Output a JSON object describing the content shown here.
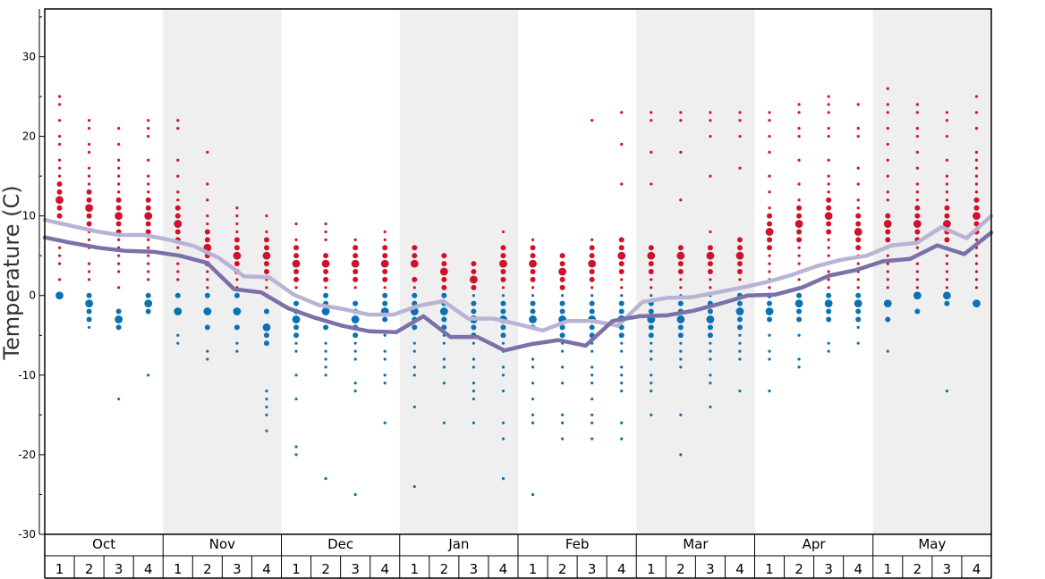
{
  "chart_data": {
    "type": "scatter",
    "ylabel": "Temperature (C)",
    "ylim": [
      -30,
      36
    ],
    "yticks": [
      30,
      20,
      10,
      0,
      -10,
      -20,
      -30
    ],
    "y_tick_labels": [
      "30",
      "20",
      "10",
      "0",
      "-10",
      "-20",
      "-30"
    ],
    "months": [
      "Oct",
      "Nov",
      "Dec",
      "Jan",
      "Feb",
      "Mar",
      "Apr",
      "May"
    ],
    "weeks": [
      "1",
      "2",
      "3",
      "4"
    ],
    "colors": {
      "warm_points": "#d0112b",
      "cold_points": "#0872b4",
      "high_line": "#b9b4d6",
      "low_line": "#7b70a8",
      "band_shade": "#efefef",
      "grid": "#000000"
    },
    "series": [
      {
        "values": [
          9.5,
          8.8,
          8.1,
          7.6,
          7.6,
          7.0,
          6.2,
          4.7,
          2.4,
          2.3,
          0.1,
          -1.2,
          -1.7,
          -2.4,
          -2.4,
          -1.3,
          -0.7,
          -2.9,
          -2.9,
          -3.6,
          -4.4,
          -3.2,
          -3.2,
          -3.8,
          -0.8,
          -0.3,
          -0.2,
          0.4,
          1.0,
          1.7,
          2.6,
          3.7,
          4.5,
          5.0,
          6.3,
          6.6,
          8.6,
          7.2,
          10.0
        ]
      },
      {
        "values": [
          7.3,
          6.6,
          6.0,
          5.6,
          5.5,
          5.0,
          4.1,
          0.8,
          0.4,
          -1.6,
          -2.8,
          -3.8,
          -4.5,
          -4.6,
          -2.6,
          -5.2,
          -5.2,
          -6.9,
          -6.1,
          -5.6,
          -6.3,
          -3.2,
          -2.6,
          -2.5,
          -1.9,
          -1.0,
          0.0,
          0.1,
          1.0,
          2.5,
          3.2,
          4.3,
          4.6,
          6.3,
          5.2,
          7.9
        ]
      }
    ],
    "scatter_points": [
      {
        "w": 1,
        "warm": [
          25,
          24,
          22,
          20,
          19,
          17,
          16,
          15,
          14,
          13,
          12,
          11,
          10,
          9,
          7,
          6,
          5,
          4,
          2
        ],
        "cold": [
          0
        ]
      },
      {
        "w": 2,
        "warm": [
          22,
          21,
          19,
          18,
          16,
          15,
          14,
          13,
          12,
          11,
          10,
          9,
          8,
          7,
          6,
          4,
          3,
          2
        ],
        "cold": [
          0,
          -1,
          -2,
          -3,
          -4
        ]
      },
      {
        "w": 3,
        "warm": [
          21,
          19,
          17,
          16,
          15,
          14,
          13,
          12,
          11,
          10,
          9,
          8,
          7,
          6,
          5,
          4,
          3,
          1
        ],
        "cold": [
          -2,
          -3,
          -4,
          -13
        ]
      },
      {
        "w": 4,
        "warm": [
          22,
          21,
          20,
          17,
          15,
          14,
          13,
          12,
          11,
          10,
          9,
          8,
          7,
          6,
          5,
          4,
          3,
          2
        ],
        "cold": [
          0,
          -1,
          -2,
          -10
        ]
      },
      {
        "w": 5,
        "warm": [
          22,
          21,
          17,
          15,
          13,
          12,
          11,
          10,
          9,
          8,
          7,
          6,
          5,
          4,
          3,
          2
        ],
        "cold": [
          0,
          -2,
          -5,
          -6
        ]
      },
      {
        "w": 6,
        "warm": [
          18,
          14,
          12,
          10,
          9,
          8,
          7,
          6,
          5,
          4,
          3,
          2,
          1
        ],
        "cold": [
          0,
          -2,
          -4,
          -7,
          -8
        ]
      },
      {
        "w": 7,
        "warm": [
          11,
          10,
          9,
          8,
          7,
          6,
          5,
          4,
          3,
          2,
          1
        ],
        "cold": [
          0,
          -2,
          -4,
          -6,
          -7
        ]
      },
      {
        "w": 8,
        "warm": [
          10,
          8,
          7,
          6,
          5,
          4,
          3,
          2,
          1
        ],
        "cold": [
          0,
          -2,
          -4,
          -5,
          -6,
          -12,
          -13,
          -14,
          -15,
          -17
        ]
      },
      {
        "w": 9,
        "warm": [
          9,
          7,
          6,
          5,
          4,
          3,
          2,
          1
        ],
        "cold": [
          0,
          -1,
          -2,
          -3,
          -4,
          -5,
          -6,
          -7,
          -10,
          -13,
          -19,
          -20
        ]
      },
      {
        "w": 10,
        "warm": [
          9,
          8,
          7,
          5,
          4,
          3,
          2,
          1
        ],
        "cold": [
          0,
          -1,
          -2,
          -4,
          -6,
          -7,
          -8,
          -9,
          -10,
          -23
        ]
      },
      {
        "w": 11,
        "warm": [
          7,
          6,
          5,
          4,
          3,
          2,
          1
        ],
        "cold": [
          -1,
          -2,
          -3,
          -4,
          -5,
          -6,
          -7,
          -8,
          -11,
          -12,
          -25
        ]
      },
      {
        "w": 12,
        "warm": [
          8,
          7,
          6,
          5,
          4,
          3,
          2,
          1
        ],
        "cold": [
          0,
          -1,
          -2,
          -3,
          -5,
          -7,
          -8,
          -10,
          -11,
          -16
        ]
      },
      {
        "w": 13,
        "warm": [
          6,
          5,
          4,
          2,
          1
        ],
        "cold": [
          0,
          -1,
          -2,
          -3,
          -4,
          -6,
          -7,
          -9,
          -10,
          -14,
          -24
        ]
      },
      {
        "w": 14,
        "warm": [
          5,
          4,
          3,
          2,
          1
        ],
        "cold": [
          0,
          -1,
          -2,
          -3,
          -4,
          -5,
          -6,
          -8,
          -9,
          -11,
          -16
        ]
      },
      {
        "w": 15,
        "warm": [
          4,
          3,
          2,
          1
        ],
        "cold": [
          0,
          -1,
          -2,
          -3,
          -4,
          -5,
          -6,
          -8,
          -9,
          -11,
          -12,
          -13,
          -16
        ]
      },
      {
        "w": 16,
        "warm": [
          8,
          6,
          5,
          4,
          3,
          2,
          1
        ],
        "cold": [
          0,
          -1,
          -2,
          -3,
          -4,
          -5,
          -6,
          -7,
          -9,
          -10,
          -12,
          -16,
          -18,
          -23
        ]
      },
      {
        "w": 17,
        "warm": [
          7,
          6,
          5,
          4,
          3,
          2,
          1
        ],
        "cold": [
          0,
          -1,
          -2,
          -3,
          -4,
          -6,
          -8,
          -9,
          -11,
          -13,
          -15,
          -16,
          -25
        ]
      },
      {
        "w": 18,
        "warm": [
          5,
          4,
          3,
          2,
          1
        ],
        "cold": [
          0,
          -1,
          -2,
          -3,
          -4,
          -5,
          -6,
          -7,
          -9,
          -11,
          -15,
          -16,
          -18
        ]
      },
      {
        "w": 19,
        "warm": [
          22,
          7,
          6,
          5,
          4,
          3,
          2,
          1
        ],
        "cold": [
          0,
          -1,
          -2,
          -3,
          -4,
          -5,
          -6,
          -7,
          -9,
          -10,
          -11,
          -13,
          -15,
          -16,
          -18
        ]
      },
      {
        "w": 20,
        "warm": [
          23,
          19,
          14,
          7,
          6,
          5,
          4,
          3,
          2,
          1
        ],
        "cold": [
          0,
          -1,
          -2,
          -3,
          -4,
          -5,
          -6,
          -7,
          -9,
          -10,
          -11,
          -12,
          -16,
          -18
        ]
      },
      {
        "w": 21,
        "warm": [
          23,
          22,
          18,
          14,
          6,
          5,
          4,
          3,
          2,
          1
        ],
        "cold": [
          0,
          -1,
          -2,
          -3,
          -4,
          -5,
          -6,
          -7,
          -8,
          -10,
          -11,
          -12,
          -15
        ]
      },
      {
        "w": 22,
        "warm": [
          23,
          22,
          18,
          12,
          6,
          5,
          4,
          3,
          2,
          1
        ],
        "cold": [
          0,
          -1,
          -2,
          -3,
          -4,
          -5,
          -6,
          -7,
          -8,
          -9,
          -15,
          -20
        ]
      },
      {
        "w": 23,
        "warm": [
          23,
          22,
          20,
          15,
          8,
          6,
          5,
          4,
          3,
          2,
          1
        ],
        "cold": [
          0,
          -1,
          -2,
          -3,
          -4,
          -5,
          -6,
          -7,
          -8,
          -10,
          -11,
          -14
        ]
      },
      {
        "w": 24,
        "warm": [
          23,
          22,
          20,
          16,
          7,
          6,
          5,
          4,
          3,
          2,
          1
        ],
        "cold": [
          0,
          -1,
          -2,
          -3,
          -4,
          -5,
          -6,
          -7,
          -8,
          -12
        ]
      },
      {
        "w": 25,
        "warm": [
          23,
          22,
          20,
          18,
          15,
          13,
          11,
          10,
          9,
          8,
          7,
          6,
          5,
          4,
          3,
          2,
          1
        ],
        "cold": [
          0,
          -1,
          -2,
          -3,
          -5,
          -7,
          -8,
          -12
        ]
      },
      {
        "w": 26,
        "warm": [
          24,
          23,
          21,
          20,
          17,
          14,
          12,
          11,
          10,
          9,
          8,
          7,
          6,
          5,
          4,
          3,
          2,
          1
        ],
        "cold": [
          0,
          -1,
          -2,
          -3,
          -5,
          -8,
          -9
        ]
      },
      {
        "w": 27,
        "warm": [
          25,
          24,
          23,
          21,
          20,
          17,
          15,
          14,
          13,
          12,
          11,
          10,
          9,
          8,
          7,
          6,
          5,
          4,
          3,
          2,
          1
        ],
        "cold": [
          0,
          -1,
          -2,
          -3,
          -6,
          -7
        ]
      },
      {
        "w": 28,
        "warm": [
          24,
          21,
          20,
          16,
          14,
          12,
          11,
          10,
          9,
          8,
          7,
          6,
          5,
          4,
          3,
          2,
          1
        ],
        "cold": [
          0,
          -1,
          -2,
          -3,
          -4,
          -6
        ]
      },
      {
        "w": 29,
        "warm": [
          26,
          24,
          23,
          21,
          19,
          17,
          15,
          13,
          12,
          10,
          9,
          8,
          7,
          6,
          5,
          4,
          3,
          2,
          1
        ],
        "cold": [
          -1,
          -3,
          -7
        ]
      },
      {
        "w": 30,
        "warm": [
          24,
          23,
          21,
          20,
          18,
          16,
          14,
          13,
          12,
          11,
          10,
          9,
          8,
          7,
          6,
          5,
          4,
          3,
          2,
          1
        ],
        "cold": [
          0,
          -2
        ]
      },
      {
        "w": 31,
        "warm": [
          23,
          22,
          20,
          17,
          15,
          14,
          13,
          12,
          11,
          10,
          9,
          8,
          7,
          6,
          5,
          4,
          3,
          2,
          1
        ],
        "cold": [
          0,
          -1,
          -12
        ]
      },
      {
        "w": 32,
        "warm": [
          25,
          23,
          21,
          18,
          17,
          16,
          15,
          14,
          13,
          12,
          11,
          10,
          9,
          8,
          7,
          6,
          5,
          4,
          3,
          2,
          1
        ],
        "cold": [
          -1
        ]
      }
    ]
  }
}
